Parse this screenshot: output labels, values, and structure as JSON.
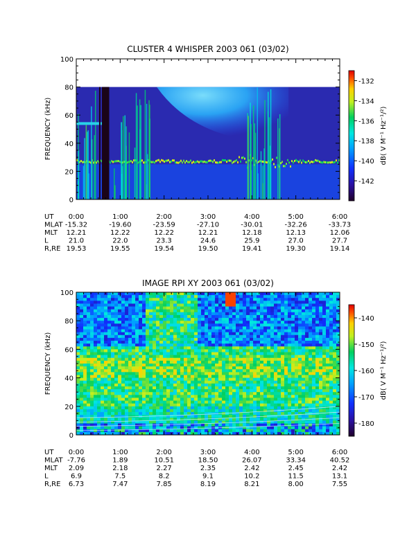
{
  "chart_data": [
    {
      "type": "heatmap",
      "title": "CLUSTER 4 WHISPER 2003 061 (03/02)",
      "ylabel": "FREQUENCY (kHz)",
      "ylim": [
        0,
        100
      ],
      "yticks": [
        "0",
        "20",
        "40",
        "60",
        "80",
        "100"
      ],
      "xlim": [
        "0:00",
        "6:00"
      ],
      "xticks": [
        "0:00",
        "1:00",
        "2:00",
        "3:00",
        "4:00",
        "5:00",
        "6:00"
      ],
      "data_max_freq_khz": 80,
      "colorbar": {
        "label": "dB( V M⁻¹ Hz⁻¹/²)",
        "range": [
          -144,
          -131
        ],
        "ticks": [
          "-132",
          "-134",
          "-136",
          "-138",
          "-140",
          "-142"
        ]
      },
      "features": [
        {
          "name": "band",
          "freq_khz": 27,
          "level_db": -136
        },
        {
          "name": "line",
          "freq_khz": 54,
          "from": "0:00",
          "to": "0:35",
          "level_db": -136
        },
        {
          "name": "diffuse",
          "from": "1:50",
          "to": "4:50",
          "freq_low_khz": 40,
          "freq_high_khz": 80,
          "level_db": -137
        },
        {
          "name": "gap",
          "from": "0:35",
          "to": "0:45"
        }
      ],
      "ephemeris": {
        "row_labels": [
          "UT",
          "MLAT",
          "MLT",
          "L",
          "R,RE"
        ],
        "UT": [
          "0:00",
          "1:00",
          "2:00",
          "3:00",
          "4:00",
          "5:00",
          "6:00"
        ],
        "MLAT": [
          "-15.32",
          "-19.60",
          "-23.59",
          "-27.10",
          "-30.01",
          "-32.26",
          "-33.73"
        ],
        "MLT": [
          "12.21",
          "12.22",
          "12.22",
          "12.21",
          "12.18",
          "12.13",
          "12.06"
        ],
        "L": [
          "21.0",
          "22.0",
          "23.3",
          "24.6",
          "25.9",
          "27.0",
          "27.7"
        ],
        "R,RE": [
          "19.53",
          "19.55",
          "19.54",
          "19.50",
          "19.41",
          "19.30",
          "19.14"
        ]
      }
    },
    {
      "type": "heatmap",
      "title": "IMAGE RPI XY 2003 061 (03/02)",
      "ylabel": "FREQUENCY (kHz)",
      "ylim": [
        0,
        100
      ],
      "yticks": [
        "0",
        "20",
        "40",
        "60",
        "80",
        "100"
      ],
      "xlim": [
        "0:00",
        "6:00"
      ],
      "xticks": [
        "0:00",
        "1:00",
        "2:00",
        "3:00",
        "4:00",
        "5:00",
        "6:00"
      ],
      "colorbar": {
        "label": "dB( V M⁻¹ Hz⁻¹/²)",
        "range": [
          -185,
          -135
        ],
        "ticks": [
          "-140",
          "-150",
          "-160",
          "-170",
          "-180"
        ]
      },
      "ephemeris": {
        "row_labels": [
          "UT",
          "MLAT",
          "MLT",
          "L",
          "R,RE"
        ],
        "UT": [
          "0:00",
          "1:00",
          "2:00",
          "3:00",
          "4:00",
          "5:00",
          "6:00"
        ],
        "MLAT": [
          "-7.76",
          "1.89",
          "10.51",
          "18.50",
          "26.07",
          "33.34",
          "40.52"
        ],
        "MLT": [
          "2.09",
          "2.18",
          "2.27",
          "2.35",
          "2.42",
          "2.45",
          "2.42"
        ],
        "L": [
          "6.9",
          "7.5",
          "8.2",
          "9.1",
          "10.2",
          "11.5",
          "13.1"
        ],
        "R,RE": [
          "6.73",
          "7.47",
          "7.85",
          "8.19",
          "8.21",
          "8.00",
          "7.55"
        ]
      }
    }
  ]
}
